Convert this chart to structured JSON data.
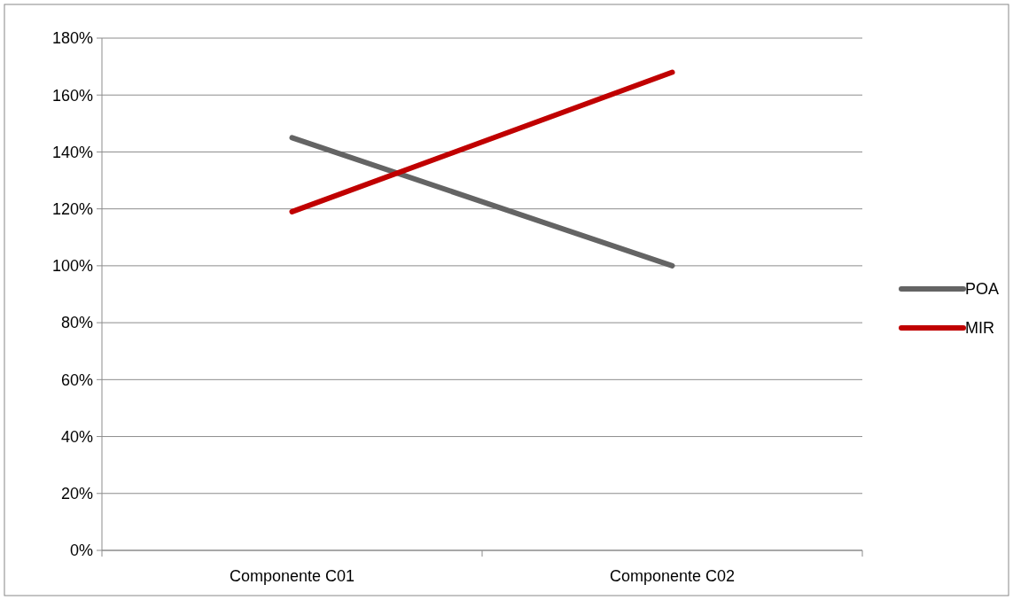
{
  "chart_data": {
    "type": "line",
    "categories": [
      "Componente C01",
      "Componente C02"
    ],
    "series": [
      {
        "name": "POA",
        "color": "#646464",
        "values": [
          145,
          100
        ]
      },
      {
        "name": "MIR",
        "color": "#c00000",
        "values": [
          119,
          168
        ]
      }
    ],
    "ylim": [
      0,
      180
    ],
    "yticks": [
      {
        "value": 0,
        "label": "0%"
      },
      {
        "value": 20,
        "label": "20%"
      },
      {
        "value": 40,
        "label": "40%"
      },
      {
        "value": 60,
        "label": "60%"
      },
      {
        "value": 80,
        "label": "80%"
      },
      {
        "value": 100,
        "label": "100%"
      },
      {
        "value": 120,
        "label": "120%"
      },
      {
        "value": 140,
        "label": "140%"
      },
      {
        "value": 160,
        "label": "160%"
      },
      {
        "value": 180,
        "label": "180%"
      }
    ],
    "grid": "y",
    "legend": "right",
    "marker": "none",
    "line_style": "solid"
  }
}
